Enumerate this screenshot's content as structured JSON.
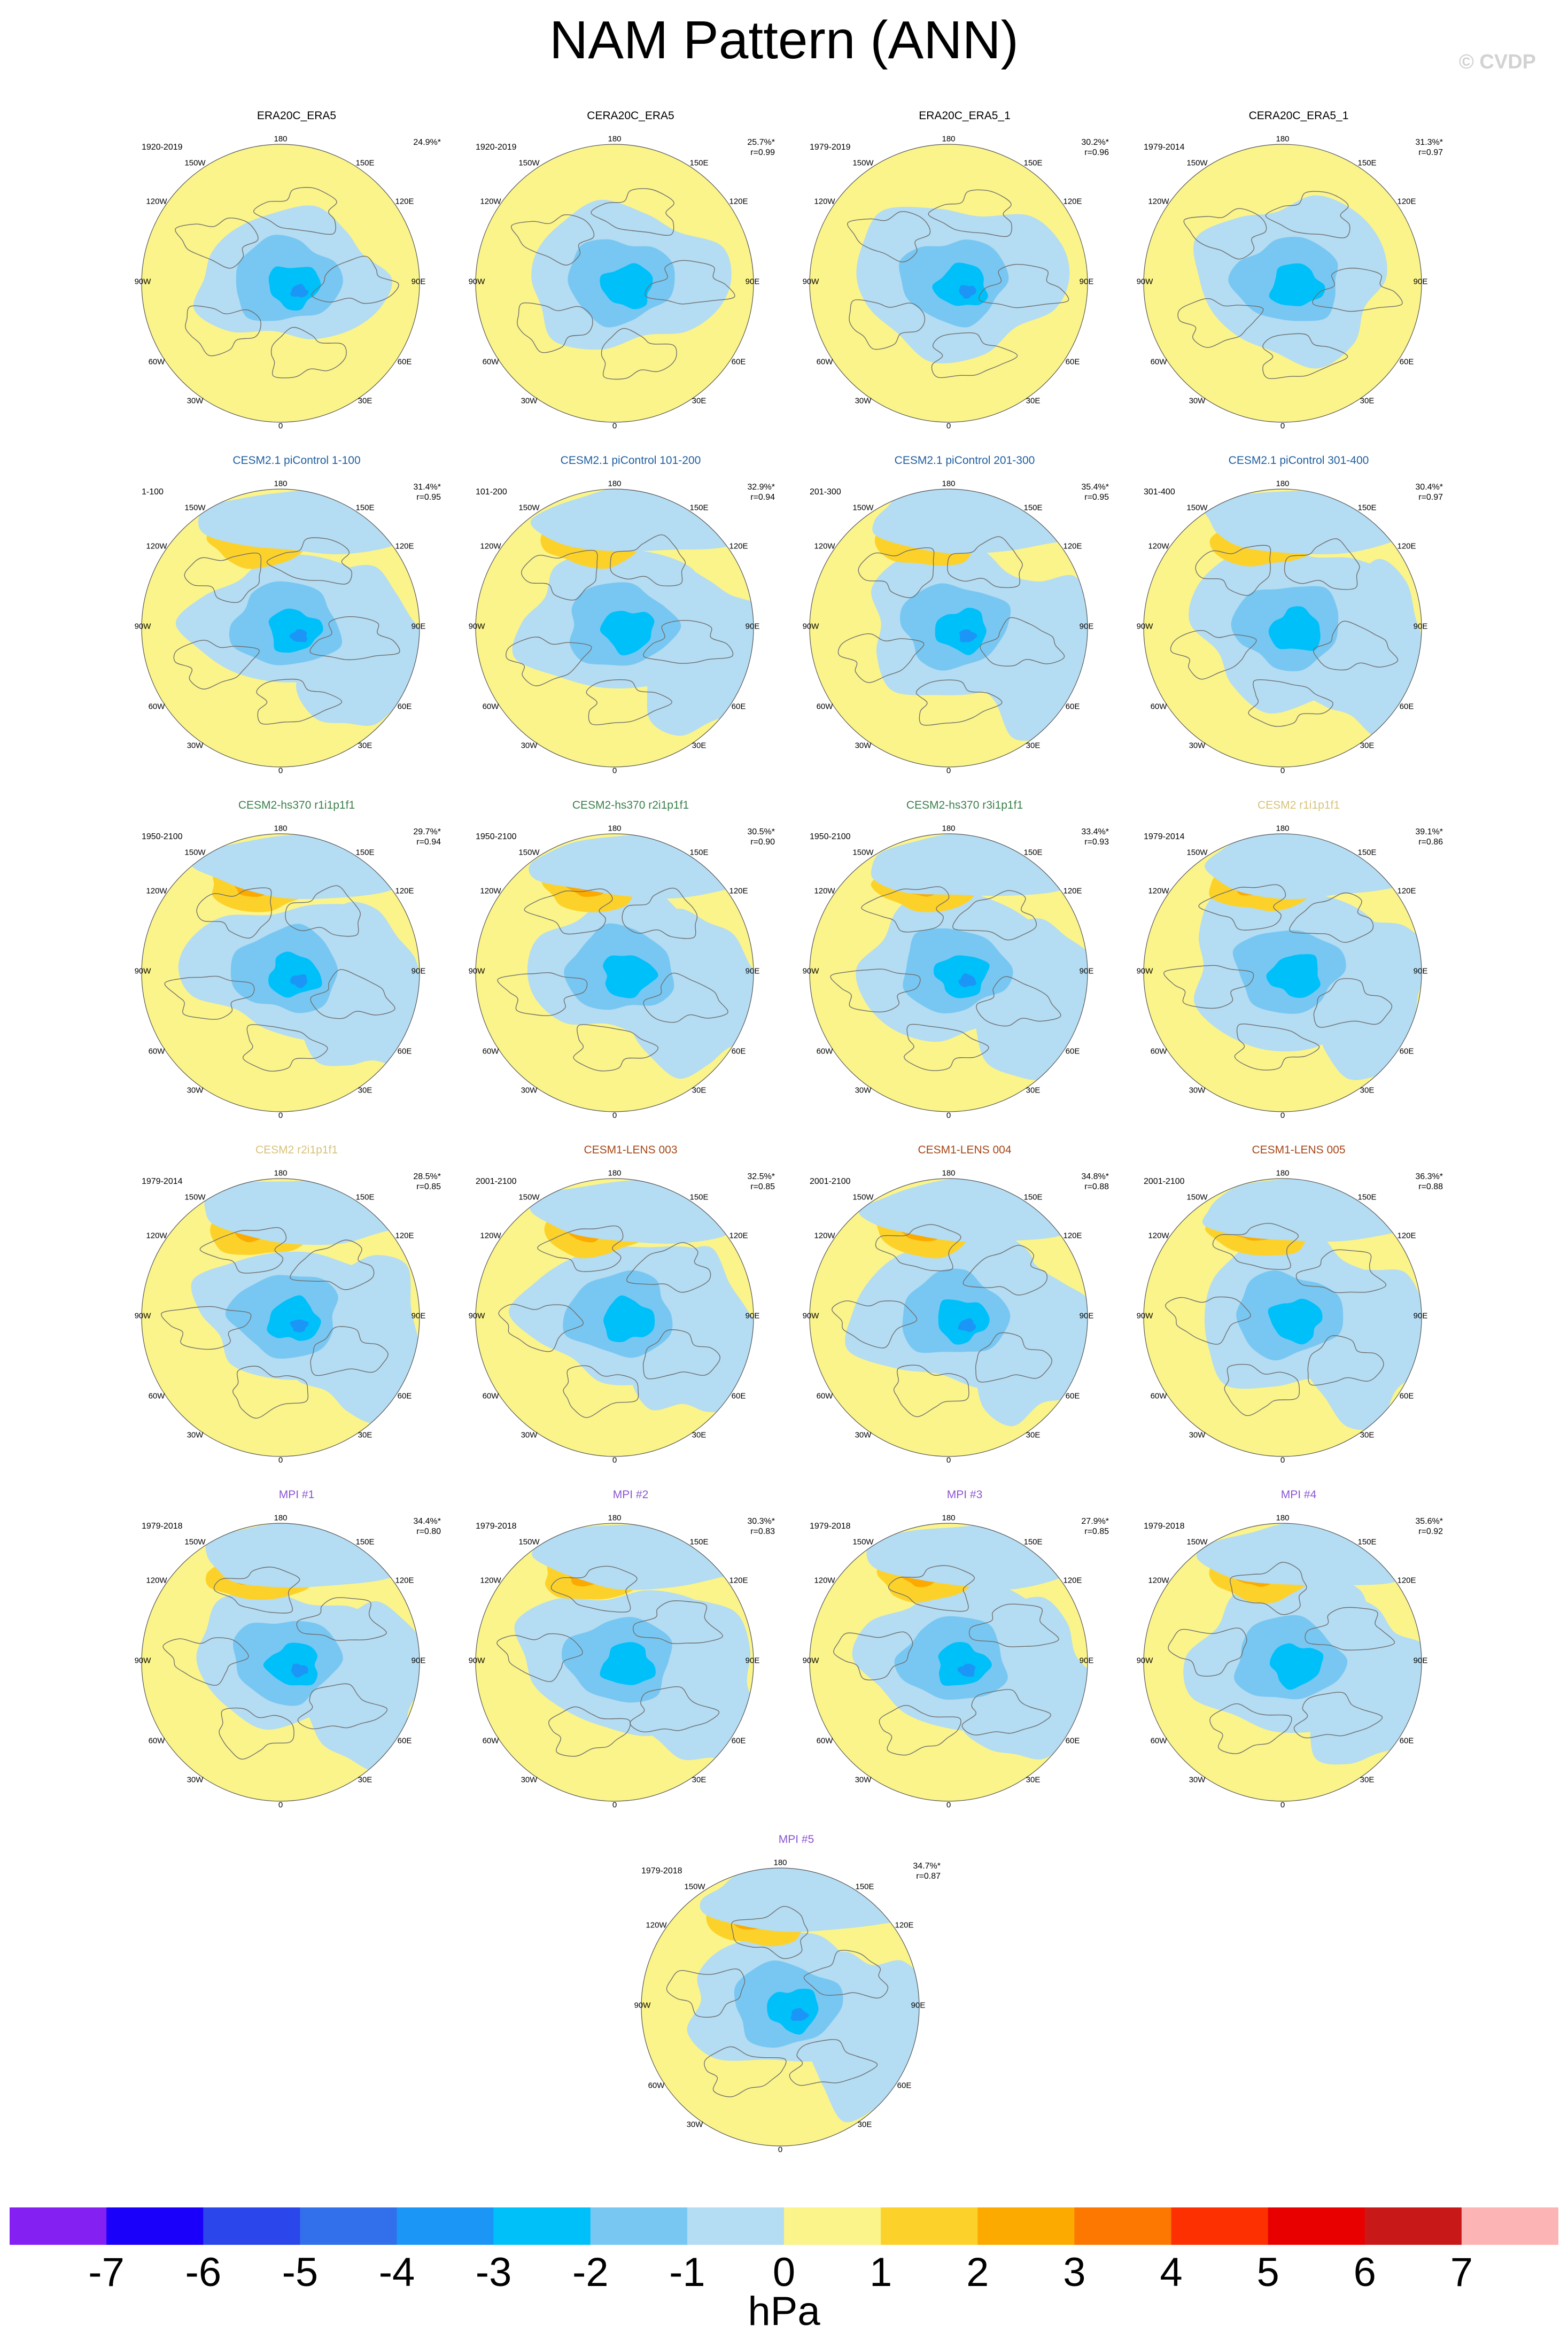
{
  "title": "NAM Pattern (ANN)",
  "copyright": "© CVDP",
  "units": "hPa",
  "colors": {
    "title_obs": "#000000",
    "title_pi": "#1f5fa0",
    "title_hs370": "#3c7f4c",
    "title_cesm2": "#d8c27a",
    "title_lens": "#a54617",
    "title_mpi": "#8a55d2"
  },
  "longitude_labels": {
    "top": "180",
    "upper_left": "150W",
    "upper_right": "150E",
    "mid_upper_left": "120W",
    "mid_upper_right": "120E",
    "left": "90W",
    "right": "90E",
    "lower_left": "60W",
    "lower_right": "60E",
    "bottom_left": "30W",
    "bottom_right": "30E",
    "bottom": "0"
  },
  "colorbar": {
    "colors": [
      "#8420f2",
      "#1a00fa",
      "#2b46ea",
      "#3170ea",
      "#1c96f6",
      "#00c0fa",
      "#78c7f2",
      "#b4dcf2",
      "#fbf48a",
      "#fcd22a",
      "#fcaa00",
      "#fc7800",
      "#fc3000",
      "#e80000",
      "#c81818",
      "#fcb4b4"
    ],
    "labels": [
      "-7",
      "-6",
      "-5",
      "-4",
      "-3",
      "-2",
      "-1",
      "0",
      "1",
      "2",
      "3",
      "4",
      "5",
      "6",
      "7"
    ]
  },
  "panels": [
    {
      "title": "ERA20C_ERA5",
      "title_color": "title_obs",
      "period": "1920-2019",
      "pct": "24.9%*",
      "r": ""
    },
    {
      "title": "CERA20C_ERA5",
      "title_color": "title_obs",
      "period": "1920-2019",
      "pct": "25.7%*",
      "r": "r=0.99"
    },
    {
      "title": "ERA20C_ERA5_1",
      "title_color": "title_obs",
      "period": "1979-2019",
      "pct": "30.2%*",
      "r": "r=0.96"
    },
    {
      "title": "CERA20C_ERA5_1",
      "title_color": "title_obs",
      "period": "1979-2014",
      "pct": "31.3%*",
      "r": "r=0.97"
    },
    {
      "title": "CESM2.1 piControl 1-100",
      "title_color": "title_pi",
      "period": "1-100",
      "pct": "31.4%*",
      "r": "r=0.95"
    },
    {
      "title": "CESM2.1 piControl 101-200",
      "title_color": "title_pi",
      "period": "101-200",
      "pct": "32.9%*",
      "r": "r=0.94"
    },
    {
      "title": "CESM2.1 piControl 201-300",
      "title_color": "title_pi",
      "period": "201-300",
      "pct": "35.4%*",
      "r": "r=0.95"
    },
    {
      "title": "CESM2.1 piControl 301-400",
      "title_color": "title_pi",
      "period": "301-400",
      "pct": "30.4%*",
      "r": "r=0.97"
    },
    {
      "title": "CESM2-hs370 r1i1p1f1",
      "title_color": "title_hs370",
      "period": "1950-2100",
      "pct": "29.7%*",
      "r": "r=0.94"
    },
    {
      "title": "CESM2-hs370 r2i1p1f1",
      "title_color": "title_hs370",
      "period": "1950-2100",
      "pct": "30.5%*",
      "r": "r=0.90"
    },
    {
      "title": "CESM2-hs370 r3i1p1f1",
      "title_color": "title_hs370",
      "period": "1950-2100",
      "pct": "33.4%*",
      "r": "r=0.93"
    },
    {
      "title": "CESM2 r1i1p1f1",
      "title_color": "title_cesm2",
      "period": "1979-2014",
      "pct": "39.1%*",
      "r": "r=0.86"
    },
    {
      "title": "CESM2 r2i1p1f1",
      "title_color": "title_cesm2",
      "period": "1979-2014",
      "pct": "28.5%*",
      "r": "r=0.85"
    },
    {
      "title": "CESM1-LENS 003",
      "title_color": "title_lens",
      "period": "2001-2100",
      "pct": "32.5%*",
      "r": "r=0.85"
    },
    {
      "title": "CESM1-LENS 004",
      "title_color": "title_lens",
      "period": "2001-2100",
      "pct": "34.8%*",
      "r": "r=0.88"
    },
    {
      "title": "CESM1-LENS 005",
      "title_color": "title_lens",
      "period": "2001-2100",
      "pct": "36.3%*",
      "r": "r=0.88"
    },
    {
      "title": "MPI #1",
      "title_color": "title_mpi",
      "period": "1979-2018",
      "pct": "34.4%*",
      "r": "r=0.80"
    },
    {
      "title": "MPI #2",
      "title_color": "title_mpi",
      "period": "1979-2018",
      "pct": "30.3%*",
      "r": "r=0.83"
    },
    {
      "title": "MPI #3",
      "title_color": "title_mpi",
      "period": "1979-2018",
      "pct": "27.9%*",
      "r": "r=0.85"
    },
    {
      "title": "MPI #4",
      "title_color": "title_mpi",
      "period": "1979-2018",
      "pct": "35.6%*",
      "r": "r=0.92"
    },
    {
      "title": "MPI #5",
      "title_color": "title_mpi",
      "period": "1979-2018",
      "pct": "34.7%*",
      "r": "r=0.87"
    }
  ]
}
